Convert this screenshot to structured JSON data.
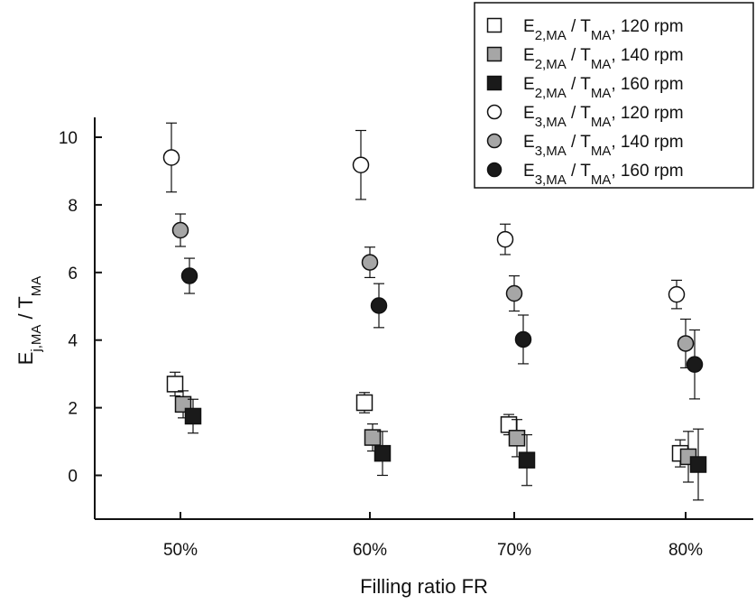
{
  "chart_data": {
    "type": "scatter",
    "xlabel": "Filling ratio FR",
    "ylabel": {
      "base": "E",
      "sub1": "j,MA",
      "mid": " / T",
      "sub2": "MA"
    },
    "categories": [
      "50%",
      "60%",
      "70%",
      "80%"
    ],
    "ylim": [
      -1.3,
      10.9
    ],
    "yticks": [
      0,
      2,
      4,
      6,
      8,
      10
    ],
    "grid": false,
    "legend_position": "top-right",
    "series": [
      {
        "name": {
          "base": "E",
          "sub1": "2,MA",
          "mid": " / T",
          "sub2": "MA",
          "tail": ", 120 rpm"
        },
        "marker": "square",
        "fill": "#ffffff",
        "values": [
          2.7,
          2.15,
          1.5,
          0.65
        ],
        "errors": [
          0.35,
          0.3,
          0.3,
          0.4
        ]
      },
      {
        "name": {
          "base": "E",
          "sub1": "2,MA",
          "mid": " / T",
          "sub2": "MA",
          "tail": ", 140 rpm"
        },
        "marker": "square",
        "fill": "#a6a6a6",
        "values": [
          2.1,
          1.12,
          1.1,
          0.55
        ],
        "errors": [
          0.4,
          0.4,
          0.55,
          0.75
        ]
      },
      {
        "name": {
          "base": "E",
          "sub1": "2,MA",
          "mid": " / T",
          "sub2": "MA",
          "tail": ", 160 rpm"
        },
        "marker": "square",
        "fill": "#1a1a1a",
        "values": [
          1.75,
          0.65,
          0.45,
          0.32
        ],
        "errors": [
          0.5,
          0.65,
          0.75,
          1.05
        ]
      },
      {
        "name": {
          "base": "E",
          "sub1": "3,MA",
          "mid": " / T",
          "sub2": "MA",
          "tail": ", 120 rpm"
        },
        "marker": "circle",
        "fill": "#ffffff",
        "values": [
          9.4,
          9.18,
          6.98,
          5.35
        ],
        "errors": [
          1.02,
          1.02,
          0.45,
          0.42
        ]
      },
      {
        "name": {
          "base": "E",
          "sub1": "3,MA",
          "mid": " / T",
          "sub2": "MA",
          "tail": ", 140 rpm"
        },
        "marker": "circle",
        "fill": "#a6a6a6",
        "values": [
          7.25,
          6.3,
          5.38,
          3.9
        ],
        "errors": [
          0.48,
          0.45,
          0.52,
          0.72
        ]
      },
      {
        "name": {
          "base": "E",
          "sub1": "3,MA",
          "mid": " / T",
          "sub2": "MA",
          "tail": ", 160 rpm"
        },
        "marker": "circle",
        "fill": "#1a1a1a",
        "values": [
          5.9,
          5.02,
          4.02,
          3.28
        ],
        "errors": [
          0.52,
          0.65,
          0.72,
          1.02
        ]
      }
    ]
  }
}
